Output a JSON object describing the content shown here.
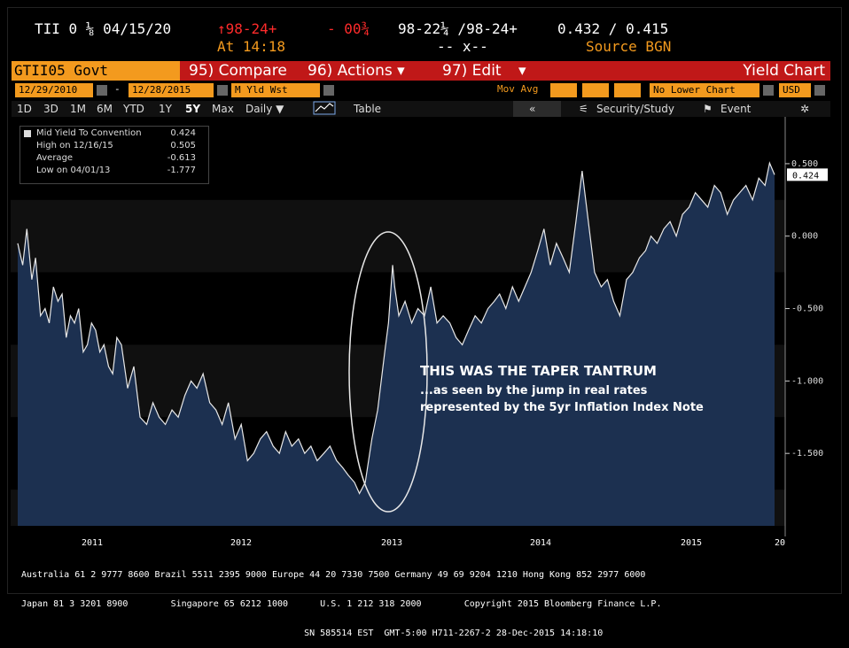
{
  "quote": {
    "security": "TII 0 ⅛ 04/15/20",
    "price_change": "↑98-24+",
    "time": "At 14:18",
    "net_change": "- 00¾",
    "bid_ask": "98-22¼ /98-24+",
    "cross": "-- x--",
    "yields": "0.432 / 0.415",
    "source": "Source BGN"
  },
  "function_bar": {
    "ticker": "GTII05 Govt",
    "compare": "95) Compare",
    "actions": "96) Actions ▾",
    "edit": "97) Edit",
    "edit_arrow": "▾",
    "title": "Yield Chart"
  },
  "settings_bar": {
    "start_date": "12/29/2010",
    "dash": "-",
    "end_date": "12/28/2015",
    "field": "M Yld Wst",
    "mov_avg": "Mov Avg",
    "lower_chart": "No Lower Chart",
    "currency": "USD"
  },
  "range_tabs": [
    "1D",
    "3D",
    "1M",
    "6M",
    "YTD",
    "1Y",
    "5Y",
    "Max"
  ],
  "selected_range": "5Y",
  "period": "Daily ▼",
  "table_label": "Table",
  "nav_back": "«",
  "security_study": "Security/Study",
  "event": "Event",
  "legend": {
    "rows": [
      {
        "label": "Mid Yield To Convention",
        "value": "0.424"
      },
      {
        "label": "High on 12/16/15",
        "value": "0.505"
      },
      {
        "label": "Average",
        "value": "-0.613"
      },
      {
        "label": "Low on 04/01/13",
        "value": "-1.777"
      }
    ]
  },
  "annotation": {
    "line1": "THIS WAS THE TAPER TANTRUM",
    "line2": "...as seen by the jump in real rates",
    "line3": "represented by the 5yr Inflation Index Note"
  },
  "footer": {
    "years": [
      "2011",
      "2012",
      "2013",
      "2014",
      "2015",
      "20"
    ],
    "line1": "Australia 61 2 9777 8600 Brazil 5511 2395 9000 Europe 44 20 7330 7500 Germany 49 69 9204 1210 Hong Kong 852 2977 6000",
    "line2": "Japan 81 3 3201 8900        Singapore 65 6212 1000      U.S. 1 212 318 2000        Copyright 2015 Bloomberg Finance L.P.",
    "line3": "                                                     SN 585514 EST  GMT-5:00 H711-2267-2 28-Dec-2015 14:18:10"
  },
  "colors": {
    "accent_orange": "#f39a1e",
    "function_red": "#c01818",
    "area_fill": "#1c3050",
    "line": "#e8e8e8"
  },
  "chart_data": {
    "type": "area",
    "series": [
      {
        "name": "Mid Yield To Convention"
      }
    ],
    "x": [
      "2010-12-29",
      "2011-01-10",
      "2011-01-20",
      "2011-02-01",
      "2011-02-10",
      "2011-02-22",
      "2011-03-05",
      "2011-03-15",
      "2011-03-25",
      "2011-04-05",
      "2011-04-15",
      "2011-04-25",
      "2011-05-05",
      "2011-05-15",
      "2011-05-25",
      "2011-06-05",
      "2011-06-15",
      "2011-06-25",
      "2011-07-05",
      "2011-07-15",
      "2011-07-25",
      "2011-08-05",
      "2011-08-15",
      "2011-08-25",
      "2011-09-05",
      "2011-09-20",
      "2011-10-05",
      "2011-10-20",
      "2011-11-05",
      "2011-11-20",
      "2011-12-05",
      "2011-12-20",
      "2012-01-05",
      "2012-01-20",
      "2012-02-05",
      "2012-02-20",
      "2012-03-05",
      "2012-03-20",
      "2012-04-05",
      "2012-04-20",
      "2012-05-05",
      "2012-05-20",
      "2012-06-05",
      "2012-06-20",
      "2012-07-05",
      "2012-07-20",
      "2012-08-05",
      "2012-08-20",
      "2012-09-05",
      "2012-09-20",
      "2012-10-05",
      "2012-10-20",
      "2012-11-05",
      "2012-11-20",
      "2012-12-05",
      "2012-12-20",
      "2013-01-05",
      "2013-01-20",
      "2013-02-05",
      "2013-02-20",
      "2013-03-05",
      "2013-03-20",
      "2013-04-01",
      "2013-04-15",
      "2013-05-01",
      "2013-05-15",
      "2013-06-01",
      "2013-06-10",
      "2013-06-20",
      "2013-06-25",
      "2013-07-05",
      "2013-07-20",
      "2013-08-05",
      "2013-08-20",
      "2013-09-05",
      "2013-09-20",
      "2013-10-05",
      "2013-10-20",
      "2013-11-05",
      "2013-11-20",
      "2013-12-05",
      "2013-12-20",
      "2014-01-05",
      "2014-01-20",
      "2014-02-05",
      "2014-02-20",
      "2014-03-05",
      "2014-03-20",
      "2014-04-05",
      "2014-04-20",
      "2014-05-05",
      "2014-05-20",
      "2014-06-05",
      "2014-06-20",
      "2014-07-05",
      "2014-07-20",
      "2014-08-05",
      "2014-08-20",
      "2014-09-05",
      "2014-09-20",
      "2014-10-05",
      "2014-10-20",
      "2014-11-05",
      "2014-11-20",
      "2014-12-05",
      "2014-12-20",
      "2015-01-05",
      "2015-01-20",
      "2015-02-05",
      "2015-02-20",
      "2015-03-05",
      "2015-03-20",
      "2015-04-05",
      "2015-04-20",
      "2015-05-05",
      "2015-05-20",
      "2015-06-05",
      "2015-06-20",
      "2015-07-05",
      "2015-07-20",
      "2015-08-05",
      "2015-08-20",
      "2015-09-05",
      "2015-09-20",
      "2015-10-05",
      "2015-10-20",
      "2015-11-05",
      "2015-11-20",
      "2015-12-05",
      "2015-12-16",
      "2015-12-28"
    ],
    "y": [
      -0.05,
      -0.2,
      0.05,
      -0.3,
      -0.15,
      -0.55,
      -0.5,
      -0.6,
      -0.35,
      -0.45,
      -0.4,
      -0.7,
      -0.55,
      -0.6,
      -0.5,
      -0.8,
      -0.75,
      -0.6,
      -0.65,
      -0.8,
      -0.75,
      -0.9,
      -0.95,
      -0.7,
      -0.75,
      -1.05,
      -0.9,
      -1.25,
      -1.3,
      -1.15,
      -1.25,
      -1.3,
      -1.2,
      -1.25,
      -1.1,
      -1.0,
      -1.05,
      -0.95,
      -1.15,
      -1.2,
      -1.3,
      -1.15,
      -1.4,
      -1.3,
      -1.55,
      -1.5,
      -1.4,
      -1.35,
      -1.45,
      -1.5,
      -1.35,
      -1.45,
      -1.4,
      -1.5,
      -1.45,
      -1.55,
      -1.5,
      -1.45,
      -1.55,
      -1.6,
      -1.65,
      -1.7,
      -1.777,
      -1.7,
      -1.4,
      -1.2,
      -0.8,
      -0.6,
      -0.2,
      -0.35,
      -0.55,
      -0.45,
      -0.6,
      -0.5,
      -0.55,
      -0.35,
      -0.6,
      -0.55,
      -0.6,
      -0.7,
      -0.75,
      -0.65,
      -0.55,
      -0.6,
      -0.5,
      -0.45,
      -0.4,
      -0.5,
      -0.35,
      -0.45,
      -0.35,
      -0.25,
      -0.1,
      0.05,
      -0.2,
      -0.05,
      -0.15,
      -0.25,
      0.1,
      0.45,
      0.1,
      -0.25,
      -0.35,
      -0.3,
      -0.45,
      -0.55,
      -0.3,
      -0.25,
      -0.15,
      -0.1,
      0.0,
      -0.05,
      0.05,
      0.1,
      0.0,
      0.15,
      0.2,
      0.3,
      0.25,
      0.2,
      0.35,
      0.3,
      0.15,
      0.25,
      0.3,
      0.35,
      0.25,
      0.4,
      0.35,
      0.505,
      0.424
    ],
    "ylim": [
      -2.0,
      0.75
    ],
    "yticks": [
      0.5,
      0.0,
      -0.5,
      -1.0,
      -1.5
    ],
    "ytick_labels": [
      "0.500",
      "0.000",
      "-0.500",
      "-1.000",
      "-1.500"
    ],
    "last_value_label": "0.424",
    "xticks": [
      "2011",
      "2012",
      "2013",
      "2014",
      "2015",
      "20"
    ],
    "grid": false
  }
}
